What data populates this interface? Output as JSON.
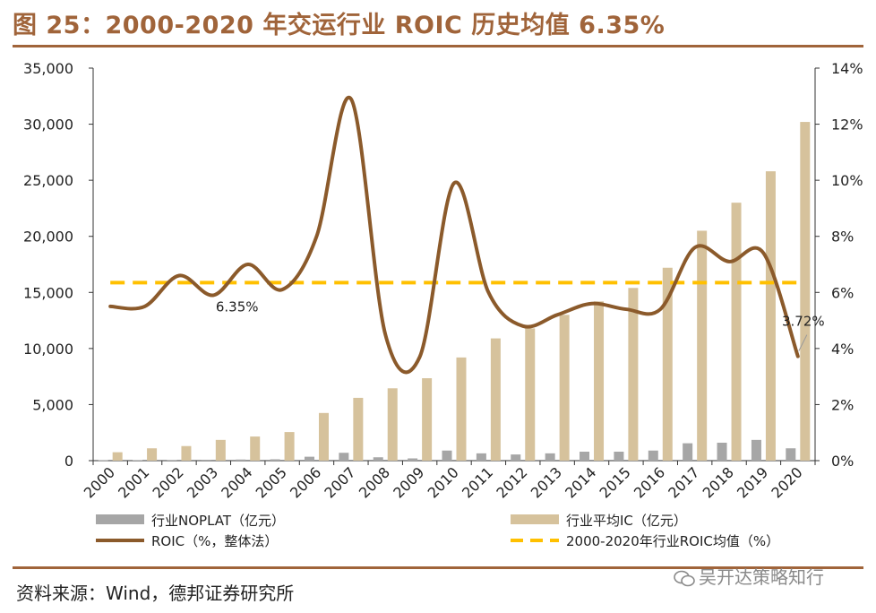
{
  "title": "图 25：2000-2020 年交运行业 ROIC 历史均值 6.35%",
  "source": "资料来源：Wind，德邦证券研究所",
  "watermark": "吴开达策略知行",
  "colors": {
    "accent": "#a0643a",
    "noplat": "#a6a6a6",
    "ic": "#d6c29c",
    "roic": "#8b5a2b",
    "mean": "#ffc000"
  },
  "chart_data": {
    "type": "bar+line",
    "title": "2000-2020 年交运行业 ROIC 历史均值 6.35%",
    "categories": [
      "2000",
      "2001",
      "2002",
      "2003",
      "2004",
      "2005",
      "2006",
      "2007",
      "2008",
      "2009",
      "2010",
      "2011",
      "2012",
      "2013",
      "2014",
      "2015",
      "2016",
      "2017",
      "2018",
      "2019",
      "2020"
    ],
    "left_axis": {
      "min": 0,
      "max": 35000,
      "ticks": [
        0,
        5000,
        10000,
        15000,
        20000,
        25000,
        30000,
        35000
      ],
      "tick_labels": [
        "0",
        "5,000",
        "10,000",
        "15,000",
        "20,000",
        "25,000",
        "30,000",
        "35,000"
      ]
    },
    "right_axis": {
      "min": 0,
      "max": 14,
      "ticks": [
        0,
        2,
        4,
        6,
        8,
        10,
        12,
        14
      ],
      "tick_labels": [
        "0%",
        "2%",
        "4%",
        "6%",
        "8%",
        "10%",
        "12%",
        "14%"
      ]
    },
    "series": [
      {
        "name": "行业NOPLAT（亿元）",
        "type": "bar",
        "axis": "left",
        "values": [
          30,
          50,
          60,
          80,
          100,
          120,
          350,
          700,
          300,
          200,
          900,
          650,
          550,
          650,
          800,
          800,
          900,
          1550,
          1600,
          1850,
          1100
        ]
      },
      {
        "name": "行业平均IC（亿元）",
        "type": "bar",
        "axis": "left",
        "values": [
          750,
          1100,
          1300,
          1850,
          2150,
          2550,
          4250,
          5600,
          6450,
          7350,
          9200,
          10900,
          11800,
          13000,
          14200,
          15400,
          17200,
          20500,
          23000,
          25800,
          30200
        ]
      },
      {
        "name": "ROIC（%，整体法）",
        "type": "line",
        "axis": "right",
        "values": [
          5.5,
          5.5,
          6.6,
          5.9,
          7.0,
          6.1,
          8.0,
          12.9,
          4.5,
          3.7,
          9.9,
          6.0,
          4.8,
          5.2,
          5.6,
          5.4,
          5.4,
          7.6,
          7.1,
          7.4,
          3.72
        ]
      },
      {
        "name": "2000-2020年行业ROIC均值（%）",
        "type": "line",
        "axis": "right",
        "dashed": true,
        "values": [
          6.35,
          6.35,
          6.35,
          6.35,
          6.35,
          6.35,
          6.35,
          6.35,
          6.35,
          6.35,
          6.35,
          6.35,
          6.35,
          6.35,
          6.35,
          6.35,
          6.35,
          6.35,
          6.35,
          6.35,
          6.35
        ]
      }
    ],
    "annotations": [
      {
        "text": "6.35%",
        "at": "2004",
        "value": 6.35
      },
      {
        "text": "3.72%",
        "at": "2020",
        "value": 3.72
      }
    ],
    "legend_position": "bottom"
  }
}
